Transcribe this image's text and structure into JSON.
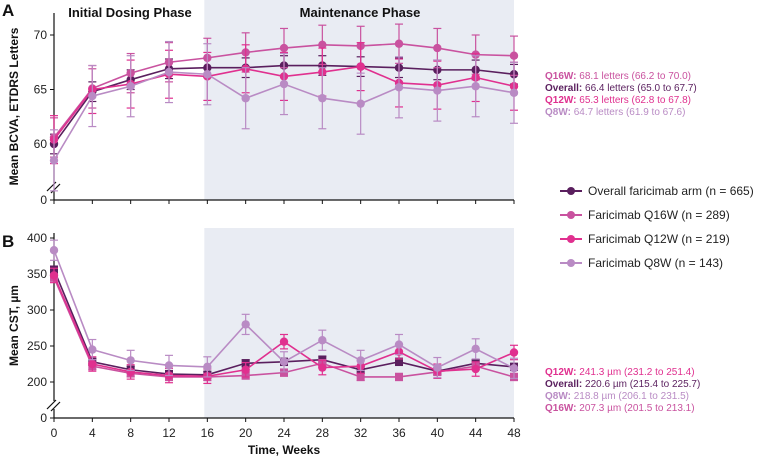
{
  "chart_data": [
    {
      "type": "line",
      "panel_label": "A",
      "ylabel": "Mean BCVA, ETDRS Letters",
      "xlabel": "",
      "x": [
        0,
        4,
        8,
        12,
        16,
        20,
        24,
        28,
        32,
        36,
        40,
        44,
        48
      ],
      "x_ticks": [
        "0",
        "4",
        "8",
        "12",
        "16",
        "20",
        "24",
        "28",
        "32",
        "36",
        "40",
        "44",
        "48"
      ],
      "y_ticks": [
        "0",
        "60",
        "65",
        "70"
      ],
      "ylim_display": [
        55,
        72
      ],
      "axis_break": true,
      "phases": [
        {
          "label": "Initial Dosing Phase",
          "range": [
            0,
            16
          ]
        },
        {
          "label": "Maintenance Phase",
          "range": [
            16,
            48
          ],
          "shaded": true
        }
      ],
      "series": [
        {
          "name": "Overall",
          "color": "#5a1f5e",
          "marker": "circle",
          "values": [
            60.0,
            64.8,
            65.9,
            66.9,
            67.0,
            67.0,
            67.2,
            67.2,
            67.1,
            67.0,
            66.8,
            66.8,
            66.4
          ],
          "err": 0.9
        },
        {
          "name": "Q16W",
          "color": "#c9529f",
          "marker": "circle",
          "values": [
            60.6,
            65.1,
            66.5,
            67.5,
            67.9,
            68.4,
            68.8,
            69.1,
            69.0,
            69.2,
            68.8,
            68.2,
            68.1
          ],
          "err": 1.8
        },
        {
          "name": "Q12W",
          "color": "#e0308f",
          "marker": "circle",
          "values": [
            60.4,
            65.0,
            65.5,
            66.4,
            66.2,
            66.9,
            66.2,
            66.6,
            67.1,
            65.6,
            65.4,
            66.1,
            65.3
          ],
          "err": 2.2
        },
        {
          "name": "Q8W",
          "color": "#b98bc4",
          "marker": "circle",
          "values": [
            58.5,
            64.4,
            65.3,
            66.6,
            66.4,
            64.2,
            65.5,
            64.2,
            63.7,
            65.2,
            64.9,
            65.3,
            64.7
          ],
          "err": 2.8
        }
      ],
      "annotations": [
        {
          "label": "Q16W:",
          "text": "68.1 letters (66.2 to 70.0)",
          "color": "#c9529f"
        },
        {
          "label": "Overall:",
          "text": "66.4 letters (65.0 to 67.7)",
          "color": "#5a1f5e"
        },
        {
          "label": "Q12W:",
          "text": "65.3 letters (62.8 to 67.8)",
          "color": "#e0308f"
        },
        {
          "label": "Q8W:",
          "text": "64.7 letters (61.9 to 67.6)",
          "color": "#b98bc4"
        }
      ]
    },
    {
      "type": "line",
      "panel_label": "B",
      "ylabel": "Mean CST, µm",
      "xlabel": "Time, Weeks",
      "x": [
        0,
        4,
        8,
        12,
        16,
        20,
        24,
        28,
        32,
        36,
        40,
        44,
        48
      ],
      "x_ticks": [
        "0",
        "4",
        "8",
        "12",
        "16",
        "20",
        "24",
        "28",
        "32",
        "36",
        "40",
        "44",
        "48"
      ],
      "y_ticks": [
        "0",
        "200",
        "250",
        "300",
        "350",
        "400"
      ],
      "ylim_display": [
        150,
        410
      ],
      "axis_break": true,
      "series": [
        {
          "name": "Overall",
          "color": "#5a1f5e",
          "marker": "square",
          "values": [
            356,
            228,
            217,
            211,
            210,
            226,
            228,
            231,
            217,
            228,
            215,
            226,
            221
          ],
          "err": 5
        },
        {
          "name": "Q16W",
          "color": "#c9529f",
          "marker": "square",
          "values": [
            345,
            222,
            212,
            207,
            207,
            209,
            213,
            226,
            207,
            207,
            214,
            222,
            207
          ],
          "err": 5
        },
        {
          "name": "Q12W",
          "color": "#e0308f",
          "marker": "circle",
          "values": [
            348,
            225,
            214,
            209,
            208,
            217,
            256,
            220,
            222,
            242,
            215,
            218,
            241
          ],
          "err": 10
        },
        {
          "name": "Q8W",
          "color": "#b98bc4",
          "marker": "circle",
          "values": [
            383,
            245,
            230,
            223,
            221,
            280,
            228,
            258,
            230,
            252,
            220,
            246,
            219
          ],
          "err": 14
        }
      ],
      "annotations": [
        {
          "label": "Q12W:",
          "text": "241.3 µm (231.2 to 251.4)",
          "color": "#e0308f"
        },
        {
          "label": "Overall:",
          "text": "220.6 µm (215.4 to 225.7)",
          "color": "#5a1f5e"
        },
        {
          "label": "Q8W:",
          "text": "218.8 µm (206.1 to 231.5)",
          "color": "#b98bc4"
        },
        {
          "label": "Q16W:",
          "text": "207.3 µm (201.5 to 213.1)",
          "color": "#c9529f"
        }
      ]
    }
  ],
  "legend": [
    {
      "label": "Overall faricimab arm (n = 665)",
      "color": "#5a1f5e"
    },
    {
      "label": "Faricimab Q16W (n = 289)",
      "color": "#c9529f"
    },
    {
      "label": "Faricimab Q12W (n = 219)",
      "color": "#e0308f"
    },
    {
      "label": "Faricimab Q8W (n = 143)",
      "color": "#b98bc4"
    }
  ],
  "shade_color": "#e9ecf3"
}
